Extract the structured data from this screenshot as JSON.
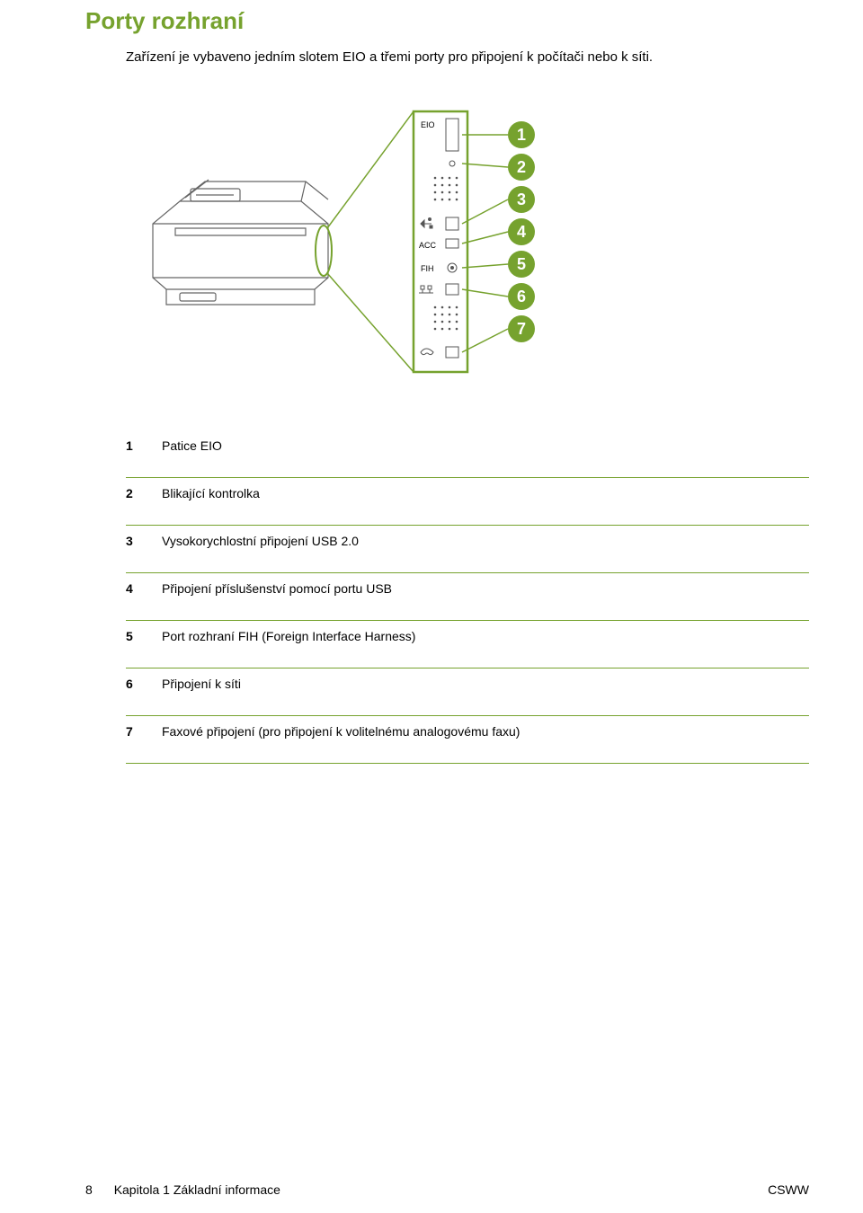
{
  "heading": {
    "text": "Porty rozhraní",
    "color": "#76a22e"
  },
  "intro": "Zařízení je vybaveno jedním slotem EIO a třemi porty pro připojení k počítači nebo k síti.",
  "diagram": {
    "panel_border_color": "#76a22e",
    "badge_fill": "#76a22e",
    "badge_text_color": "#ffffff",
    "printer_stroke": "#666666",
    "panel_labels": [
      "EIO",
      "ACC",
      "FIH"
    ],
    "badges": [
      "1",
      "2",
      "3",
      "4",
      "5",
      "6",
      "7"
    ]
  },
  "table": {
    "divider_color": "#76a22e",
    "rows": [
      {
        "num": "1",
        "text": "Patice EIO"
      },
      {
        "num": "2",
        "text": "Blikající kontrolka"
      },
      {
        "num": "3",
        "text": "Vysokorychlostní připojení USB 2.0"
      },
      {
        "num": "4",
        "text": "Připojení příslušenství pomocí portu USB"
      },
      {
        "num": "5",
        "text": "Port rozhraní FIH (Foreign Interface Harness)"
      },
      {
        "num": "6",
        "text": "Připojení k síti"
      },
      {
        "num": "7",
        "text": "Faxové připojení (pro připojení k volitelnému analogovému faxu)"
      }
    ]
  },
  "footer": {
    "page_number": "8",
    "chapter": "Kapitola 1   Základní informace",
    "right": "CSWW"
  }
}
